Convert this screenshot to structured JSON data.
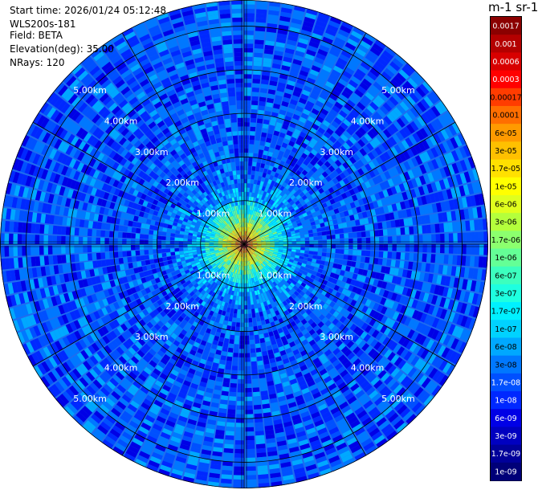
{
  "info": {
    "start_time": "Start time: 2026/01/24 05:12:48",
    "instrument": "WLS200s-181",
    "field": "Field: BETA",
    "elevation": "Elevation(deg): 35.00",
    "nrays": "NRays: 120"
  },
  "colorbar": {
    "unit_title": "m-1 sr-1",
    "labels": [
      "0.0017",
      "0.001",
      "0.0006",
      "0.0003",
      "0.00017",
      "0.0001",
      "6e-05",
      "3e-05",
      "1.7e-05",
      "1e-05",
      "6e-06",
      "3e-06",
      "1.7e-06",
      "1e-06",
      "6e-07",
      "3e-07",
      "1.7e-07",
      "1e-07",
      "6e-08",
      "3e-08",
      "1.7e-08",
      "1e-08",
      "6e-09",
      "3e-09",
      "1.7e-09",
      "1e-09"
    ],
    "colors": [
      "#8b0000",
      "#b40000",
      "#d80000",
      "#ff0000",
      "#ff3c00",
      "#ff6e00",
      "#ff9a00",
      "#ffc000",
      "#ffe000",
      "#ffff00",
      "#e0ff1e",
      "#b4ff3c",
      "#8cff6e",
      "#64ff96",
      "#3cffbe",
      "#1effe0",
      "#00f0ff",
      "#00d2ff",
      "#00a8ff",
      "#0078ff",
      "#0050ff",
      "#0028ff",
      "#0000e6",
      "#0000c0",
      "#00009a",
      "#000078"
    ],
    "white_text_labels": [
      "0.0017",
      "0.001",
      "0.0006",
      "0.0003",
      "1.7e-08",
      "1e-08",
      "6e-09",
      "3e-09",
      "1.7e-09",
      "1e-09"
    ]
  },
  "chart_data": {
    "type": "heatmap",
    "projection": "polar-ppi",
    "field": "BETA",
    "elevation_deg": 35.0,
    "n_rays": 120,
    "range_rings_km": [
      1,
      2,
      3,
      4,
      5
    ],
    "max_range_km": 5.6,
    "ring_labels": [
      "1.00km",
      "2.00km",
      "3.00km",
      "4.00km",
      "5.00km"
    ],
    "colorscale": "log",
    "value_range": [
      1e-09,
      0.0017
    ],
    "value_profile": {
      "description_free": true,
      "ranges_km": [
        0.0,
        0.2,
        0.5,
        0.8,
        1.1,
        1.5,
        2.0,
        3.0,
        5.6
      ],
      "typical_values": [
        0.0003,
        3e-05,
        2e-06,
        3e-07,
        6e-08,
        3e-08,
        2e-08,
        2e-08,
        2e-08
      ]
    },
    "grid": true
  }
}
